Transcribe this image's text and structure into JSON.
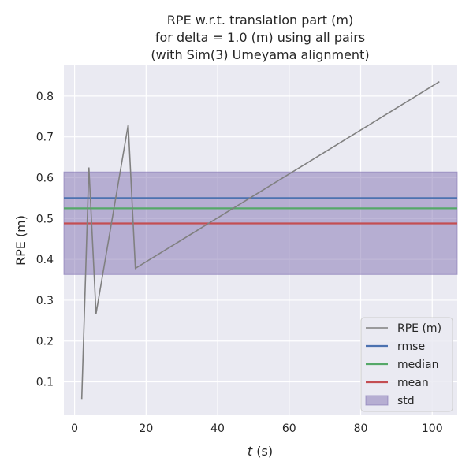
{
  "chart_data": {
    "type": "line",
    "title_lines": [
      "RPE w.r.t. translation part (m)",
      "for delta = 1.0 (m) using all pairs",
      "(with Sim(3) Umeyama alignment)"
    ],
    "xlabel_italic": "t",
    "xlabel_rest": " (s)",
    "ylabel": "RPE (m)",
    "xlim": [
      -3,
      107
    ],
    "ylim": [
      0.02,
      0.875
    ],
    "xticks": [
      0,
      20,
      40,
      60,
      80,
      100
    ],
    "yticks": [
      0.1,
      0.2,
      0.3,
      0.4,
      0.5,
      0.6,
      0.7,
      0.8
    ],
    "grid": true,
    "background": "#eaeaf2",
    "series": [
      {
        "name": "RPE (m)",
        "color": "#808080",
        "x": [
          2,
          4,
          6,
          15,
          17,
          102
        ],
        "y": [
          0.058,
          0.625,
          0.267,
          0.73,
          0.378,
          0.835
        ]
      }
    ],
    "hlines": [
      {
        "name": "rmse",
        "value": 0.55,
        "color": "#4c72b0"
      },
      {
        "name": "median",
        "value": 0.525,
        "color": "#55a868"
      },
      {
        "name": "mean",
        "value": 0.488,
        "color": "#c44e52"
      }
    ],
    "std_band": {
      "name": "std",
      "lower": 0.363,
      "upper": 0.614,
      "color": "#8172b2"
    },
    "legend_position": "lower-right",
    "legend": [
      "RPE (m)",
      "rmse",
      "median",
      "mean",
      "std"
    ]
  }
}
